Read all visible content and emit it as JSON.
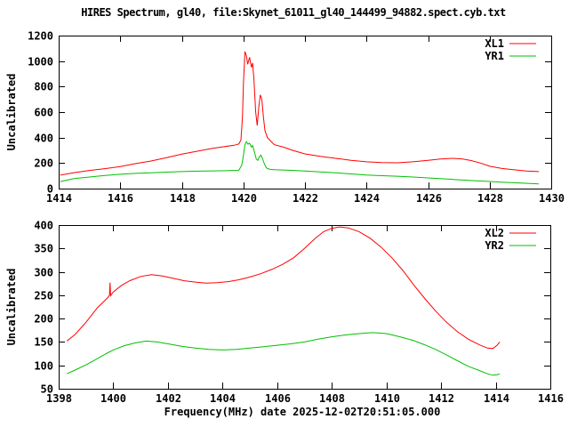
{
  "title": "HIRES Spectrum, gl40, file:Skynet_61011_gl40_144499_94882.spect.cyb.txt",
  "xlabel": "Frequency(MHz) date 2025-12-02T20:51:05.000",
  "colors": {
    "series_red": "#ff0000",
    "series_green": "#00c000",
    "axis": "#000000",
    "background": "#ffffff"
  },
  "chart_data": [
    {
      "type": "line",
      "panel": "top",
      "ylabel": "Uncalibrated",
      "xlim": [
        1414,
        1430
      ],
      "ylim": [
        0,
        1200
      ],
      "x_ticks": [
        1414,
        1416,
        1418,
        1420,
        1422,
        1424,
        1426,
        1428,
        1430
      ],
      "y_ticks": [
        0,
        200,
        400,
        600,
        800,
        1000,
        1200
      ],
      "grid": false,
      "legend_position": "top-right",
      "series": [
        {
          "name": "XL1",
          "color": "#ff0000",
          "points": [
            [
              1414.05,
              105
            ],
            [
              1414.5,
              125
            ],
            [
              1415,
              142
            ],
            [
              1415.5,
              156
            ],
            [
              1416,
              172
            ],
            [
              1416.5,
              196
            ],
            [
              1417,
              216
            ],
            [
              1417.5,
              243
            ],
            [
              1418,
              270
            ],
            [
              1418.5,
              293
            ],
            [
              1419,
              315
            ],
            [
              1419.4,
              330
            ],
            [
              1419.7,
              340
            ],
            [
              1419.85,
              350
            ],
            [
              1419.92,
              380
            ],
            [
              1419.97,
              560
            ],
            [
              1420.0,
              820
            ],
            [
              1420.05,
              1075
            ],
            [
              1420.1,
              1040
            ],
            [
              1420.14,
              975
            ],
            [
              1420.2,
              1030
            ],
            [
              1420.26,
              950
            ],
            [
              1420.3,
              985
            ],
            [
              1420.34,
              870
            ],
            [
              1420.4,
              600
            ],
            [
              1420.45,
              495
            ],
            [
              1420.5,
              640
            ],
            [
              1420.55,
              735
            ],
            [
              1420.6,
              700
            ],
            [
              1420.65,
              560
            ],
            [
              1420.7,
              455
            ],
            [
              1420.78,
              400
            ],
            [
              1420.9,
              370
            ],
            [
              1421,
              345
            ],
            [
              1421.3,
              325
            ],
            [
              1421.6,
              300
            ],
            [
              1422,
              272
            ],
            [
              1422.5,
              253
            ],
            [
              1423,
              237
            ],
            [
              1423.5,
              222
            ],
            [
              1424,
              210
            ],
            [
              1424.5,
              204
            ],
            [
              1425,
              202
            ],
            [
              1425.5,
              210
            ],
            [
              1426,
              222
            ],
            [
              1426.4,
              232
            ],
            [
              1426.8,
              237
            ],
            [
              1427.1,
              233
            ],
            [
              1427.4,
              220
            ],
            [
              1427.7,
              200
            ],
            [
              1428,
              175
            ],
            [
              1428.4,
              158
            ],
            [
              1428.8,
              147
            ],
            [
              1429.2,
              138
            ],
            [
              1429.6,
              133
            ]
          ]
        },
        {
          "name": "YR1",
          "color": "#00c000",
          "points": [
            [
              1414.05,
              55
            ],
            [
              1414.5,
              78
            ],
            [
              1415,
              91
            ],
            [
              1415.5,
              103
            ],
            [
              1416,
              112
            ],
            [
              1416.5,
              119
            ],
            [
              1417,
              124
            ],
            [
              1417.5,
              129
            ],
            [
              1418,
              133
            ],
            [
              1418.5,
              137
            ],
            [
              1419,
              139
            ],
            [
              1419.5,
              141
            ],
            [
              1419.85,
              143
            ],
            [
              1419.95,
              185
            ],
            [
              1420.0,
              260
            ],
            [
              1420.05,
              345
            ],
            [
              1420.1,
              368
            ],
            [
              1420.15,
              348
            ],
            [
              1420.2,
              356
            ],
            [
              1420.26,
              325
            ],
            [
              1420.3,
              338
            ],
            [
              1420.35,
              295
            ],
            [
              1420.42,
              230
            ],
            [
              1420.47,
              222
            ],
            [
              1420.52,
              250
            ],
            [
              1420.57,
              262
            ],
            [
              1420.62,
              238
            ],
            [
              1420.68,
              195
            ],
            [
              1420.75,
              162
            ],
            [
              1420.85,
              152
            ],
            [
              1421,
              148
            ],
            [
              1421.5,
              144
            ],
            [
              1422,
              138
            ],
            [
              1422.5,
              131
            ],
            [
              1423,
              124
            ],
            [
              1423.5,
              115
            ],
            [
              1424,
              106
            ],
            [
              1424.5,
              101
            ],
            [
              1425,
              97
            ],
            [
              1425.5,
              91
            ],
            [
              1426,
              84
            ],
            [
              1426.5,
              77
            ],
            [
              1427,
              69
            ],
            [
              1427.5,
              62
            ],
            [
              1428,
              56
            ],
            [
              1428.5,
              49
            ],
            [
              1429,
              43
            ],
            [
              1429.6,
              36
            ]
          ]
        }
      ]
    },
    {
      "type": "line",
      "panel": "bottom",
      "ylabel": "Uncalibrated",
      "xlabel": "Frequency(MHz) date 2025-12-02T20:51:05.000",
      "xlim": [
        1398,
        1416
      ],
      "ylim": [
        50,
        400
      ],
      "x_ticks": [
        1398,
        1400,
        1402,
        1404,
        1406,
        1408,
        1410,
        1412,
        1414,
        1416
      ],
      "y_ticks": [
        50,
        100,
        150,
        200,
        250,
        300,
        350,
        400
      ],
      "grid": false,
      "legend_position": "top-right",
      "series": [
        {
          "name": "XL2",
          "color": "#ff0000",
          "points": [
            [
              1398.3,
              152
            ],
            [
              1398.6,
              166
            ],
            [
              1399,
              192
            ],
            [
              1399.4,
              222
            ],
            [
              1399.8,
              245
            ],
            [
              1399.86,
              250
            ],
            [
              1399.88,
              277
            ],
            [
              1399.9,
              249
            ],
            [
              1400,
              257
            ],
            [
              1400.3,
              271
            ],
            [
              1400.6,
              281
            ],
            [
              1401,
              290
            ],
            [
              1401.4,
              294
            ],
            [
              1401.8,
              291
            ],
            [
              1402.2,
              286
            ],
            [
              1402.6,
              281
            ],
            [
              1403,
              278
            ],
            [
              1403.4,
              276
            ],
            [
              1403.8,
              277
            ],
            [
              1404.2,
              279
            ],
            [
              1404.6,
              283
            ],
            [
              1405,
              289
            ],
            [
              1405.4,
              296
            ],
            [
              1405.8,
              305
            ],
            [
              1406.2,
              316
            ],
            [
              1406.6,
              330
            ],
            [
              1407,
              350
            ],
            [
              1407.4,
              372
            ],
            [
              1407.7,
              386
            ],
            [
              1408,
              393
            ],
            [
              1408.3,
              396
            ],
            [
              1408.6,
              394
            ],
            [
              1409,
              386
            ],
            [
              1409.4,
              372
            ],
            [
              1409.8,
              353
            ],
            [
              1410.2,
              330
            ],
            [
              1410.6,
              303
            ],
            [
              1411,
              272
            ],
            [
              1411.4,
              243
            ],
            [
              1411.8,
              216
            ],
            [
              1412.2,
              192
            ],
            [
              1412.6,
              172
            ],
            [
              1413,
              156
            ],
            [
              1413.4,
              144
            ],
            [
              1413.7,
              137
            ],
            [
              1413.9,
              136
            ],
            [
              1414.05,
              143
            ],
            [
              1414.15,
              150
            ]
          ]
        },
        {
          "name": "YR2",
          "color": "#00c000",
          "points": [
            [
              1398.3,
              82
            ],
            [
              1398.6,
              90
            ],
            [
              1399,
              101
            ],
            [
              1399.4,
              114
            ],
            [
              1399.8,
              127
            ],
            [
              1400,
              133
            ],
            [
              1400.4,
              142
            ],
            [
              1400.8,
              148
            ],
            [
              1401.2,
              152
            ],
            [
              1401.6,
              150
            ],
            [
              1402,
              146
            ],
            [
              1402.5,
              141
            ],
            [
              1403,
              137
            ],
            [
              1403.5,
              134
            ],
            [
              1404,
              133
            ],
            [
              1404.5,
              134
            ],
            [
              1405,
              137
            ],
            [
              1405.5,
              140
            ],
            [
              1406,
              143
            ],
            [
              1406.5,
              146
            ],
            [
              1407,
              150
            ],
            [
              1407.5,
              156
            ],
            [
              1408,
              161
            ],
            [
              1408.5,
              165
            ],
            [
              1409,
              168
            ],
            [
              1409.5,
              170
            ],
            [
              1410,
              168
            ],
            [
              1410.5,
              161
            ],
            [
              1411,
              153
            ],
            [
              1411.4,
              144
            ],
            [
              1411.8,
              134
            ],
            [
              1412.2,
              122
            ],
            [
              1412.6,
              110
            ],
            [
              1413,
              98
            ],
            [
              1413.4,
              89
            ],
            [
              1413.7,
              82
            ],
            [
              1413.9,
              79
            ],
            [
              1414.05,
              80
            ],
            [
              1414.15,
              82
            ]
          ]
        }
      ]
    }
  ]
}
